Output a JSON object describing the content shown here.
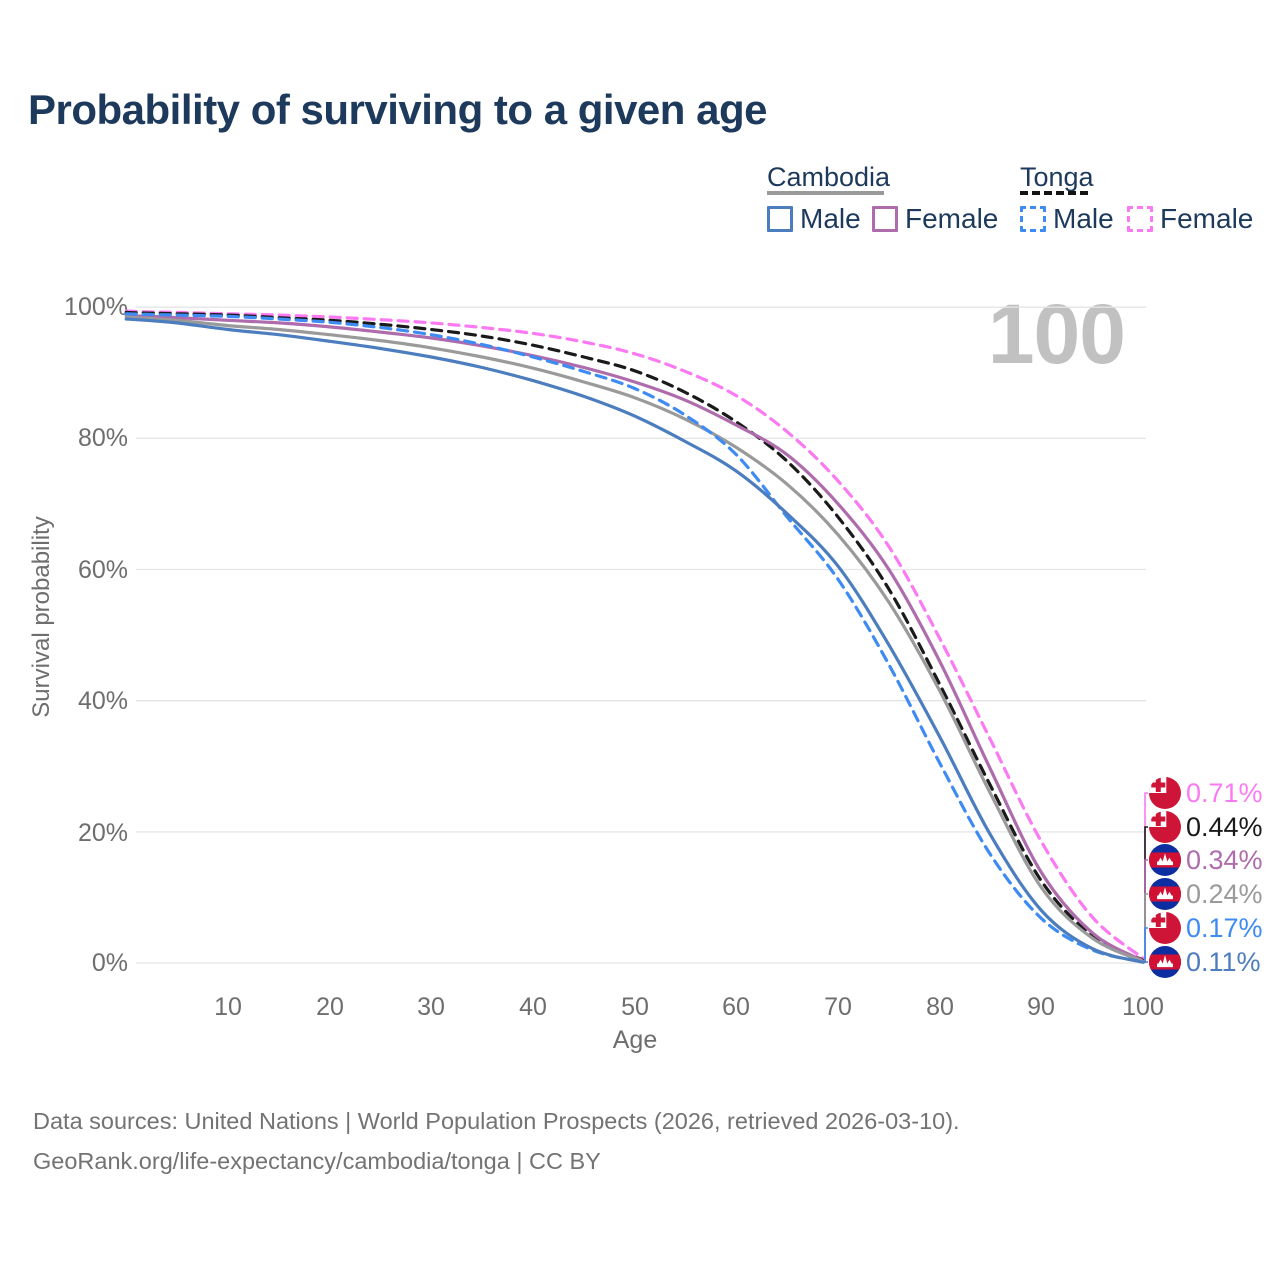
{
  "title": "Probability of surviving to a given age",
  "watermark": "100",
  "legend": {
    "groups": [
      {
        "country": "Cambodia",
        "line": "solid",
        "line_color": "#9a9a9a",
        "items": [
          {
            "label": "Male",
            "color": "#4C7DBE"
          },
          {
            "label": "Female",
            "color": "#AE6CAD"
          }
        ]
      },
      {
        "country": "Tonga",
        "line": "dashed",
        "line_color": "#141414",
        "items": [
          {
            "label": "Male",
            "color": "#3E8BF4"
          },
          {
            "label": "Female",
            "color": "#FB7AF2"
          }
        ]
      }
    ]
  },
  "chart_data": {
    "type": "line",
    "title": "Probability of surviving to a given age",
    "xlabel": "Age",
    "ylabel": "Survival probability",
    "xlim": [
      0,
      100
    ],
    "ylim": [
      0,
      100
    ],
    "grid": "horizontal",
    "x_ticks": [
      "10",
      "20",
      "30",
      "40",
      "50",
      "60",
      "70",
      "80",
      "90",
      "100"
    ],
    "y_ticks": [
      "100%",
      "80%",
      "60%",
      "40%",
      "20%",
      "0%"
    ],
    "ages": [
      0,
      2,
      5,
      10,
      15,
      20,
      25,
      30,
      35,
      40,
      45,
      50,
      55,
      60,
      65,
      70,
      75,
      80,
      85,
      90,
      95,
      100
    ],
    "series": [
      {
        "name": "Tonga Female",
        "country": "Tonga",
        "sex": "Female",
        "color": "#FB7AF2",
        "dashed": true,
        "flag": "tonga",
        "end_label": "0.71%",
        "values": [
          99.4,
          99.3,
          99.2,
          99.0,
          98.8,
          98.5,
          98.1,
          97.6,
          96.9,
          96.0,
          94.7,
          92.9,
          90.2,
          86.5,
          81.0,
          73.5,
          63.5,
          49.5,
          34.0,
          18.5,
          7.0,
          0.71
        ]
      },
      {
        "name": "Tonga",
        "country": "Tonga",
        "sex": "Both",
        "color": "#1a1a1a",
        "dashed": true,
        "flag": "tonga",
        "end_label": "0.44%",
        "values": [
          99.2,
          99.1,
          99.0,
          98.8,
          98.4,
          98.0,
          97.4,
          96.6,
          95.6,
          94.2,
          92.4,
          90.3,
          87.0,
          82.5,
          76.5,
          68.0,
          57.0,
          42.5,
          27.0,
          12.5,
          4.2,
          0.44
        ]
      },
      {
        "name": "Cambodia Female",
        "country": "Cambodia",
        "sex": "Female",
        "color": "#AE6CAD",
        "dashed": false,
        "flag": "cambodia",
        "end_label": "0.34%",
        "values": [
          98.7,
          98.6,
          98.4,
          98.0,
          97.6,
          97.0,
          96.2,
          95.3,
          94.1,
          92.6,
          90.8,
          88.6,
          85.8,
          82.0,
          77.5,
          70.0,
          60.0,
          46.0,
          29.5,
          13.8,
          4.6,
          0.34
        ]
      },
      {
        "name": "Cambodia",
        "country": "Cambodia",
        "sex": "Both",
        "color": "#9A9A9A",
        "dashed": false,
        "flag": "cambodia",
        "end_label": "0.24%",
        "values": [
          98.5,
          98.3,
          98.0,
          97.2,
          96.6,
          95.8,
          94.9,
          93.8,
          92.4,
          90.7,
          88.6,
          86.2,
          82.9,
          78.6,
          73.0,
          65.3,
          55.0,
          41.5,
          25.8,
          11.5,
          3.8,
          0.24
        ]
      },
      {
        "name": "Tonga Male",
        "country": "Tonga",
        "sex": "Male",
        "color": "#3E8BF4",
        "dashed": true,
        "flag": "tonga",
        "end_label": "0.17%",
        "values": [
          99.0,
          98.9,
          98.8,
          98.6,
          98.2,
          97.7,
          96.9,
          95.8,
          94.3,
          92.4,
          90.2,
          87.6,
          83.5,
          77.5,
          68.0,
          58.5,
          45.5,
          30.5,
          16.5,
          6.8,
          2.0,
          0.17
        ]
      },
      {
        "name": "Cambodia Male",
        "country": "Cambodia",
        "sex": "Male",
        "color": "#4C7DBE",
        "dashed": false,
        "flag": "cambodia",
        "end_label": "0.11%",
        "values": [
          98.2,
          98.0,
          97.6,
          96.6,
          95.8,
          94.8,
          93.7,
          92.4,
          90.8,
          88.8,
          86.4,
          83.4,
          79.5,
          75.0,
          68.5,
          60.5,
          48.5,
          34.5,
          19.5,
          8.0,
          2.2,
          0.11
        ]
      }
    ]
  },
  "flag_colors": {
    "tonga_red": "#CE1537",
    "cambodia_red": "#D21034",
    "cambodia_blue": "#0D2EA0"
  },
  "footer": {
    "line1": "Data sources: United Nations | World Population Prospects (2026, retrieved 2026-03-10).",
    "line2": "GeoRank.org/life-expectancy/cambodia/tonga | CC BY"
  }
}
